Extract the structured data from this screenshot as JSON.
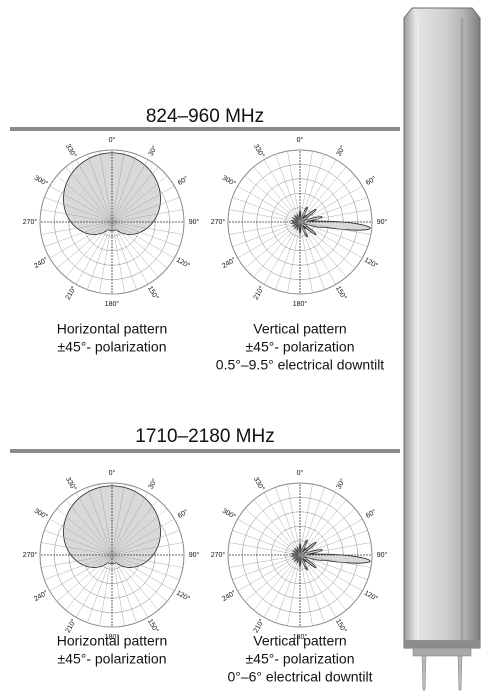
{
  "sections": [
    {
      "title": "824–960 MHz",
      "plots": [
        {
          "kind": "horizontal",
          "caption": [
            "Horizontal pattern",
            "±45°- polarization"
          ]
        },
        {
          "kind": "vertical",
          "caption": [
            "Vertical pattern",
            "±45°- polarization",
            "0.5°–9.5° electrical downtilt"
          ]
        }
      ]
    },
    {
      "title": "1710–2180 MHz",
      "plots": [
        {
          "kind": "horizontal",
          "caption": [
            "Horizontal pattern",
            "±45°- polarization"
          ]
        },
        {
          "kind": "vertical",
          "caption": [
            "Vertical pattern",
            "±45°- polarization",
            "0°–6° electrical downtilt"
          ]
        }
      ]
    }
  ],
  "angle_labels": [
    "0°",
    "30°",
    "60°",
    "90°",
    "120°",
    "150°",
    "180°",
    "210°",
    "240°",
    "270°",
    "300°",
    "330°"
  ]
}
